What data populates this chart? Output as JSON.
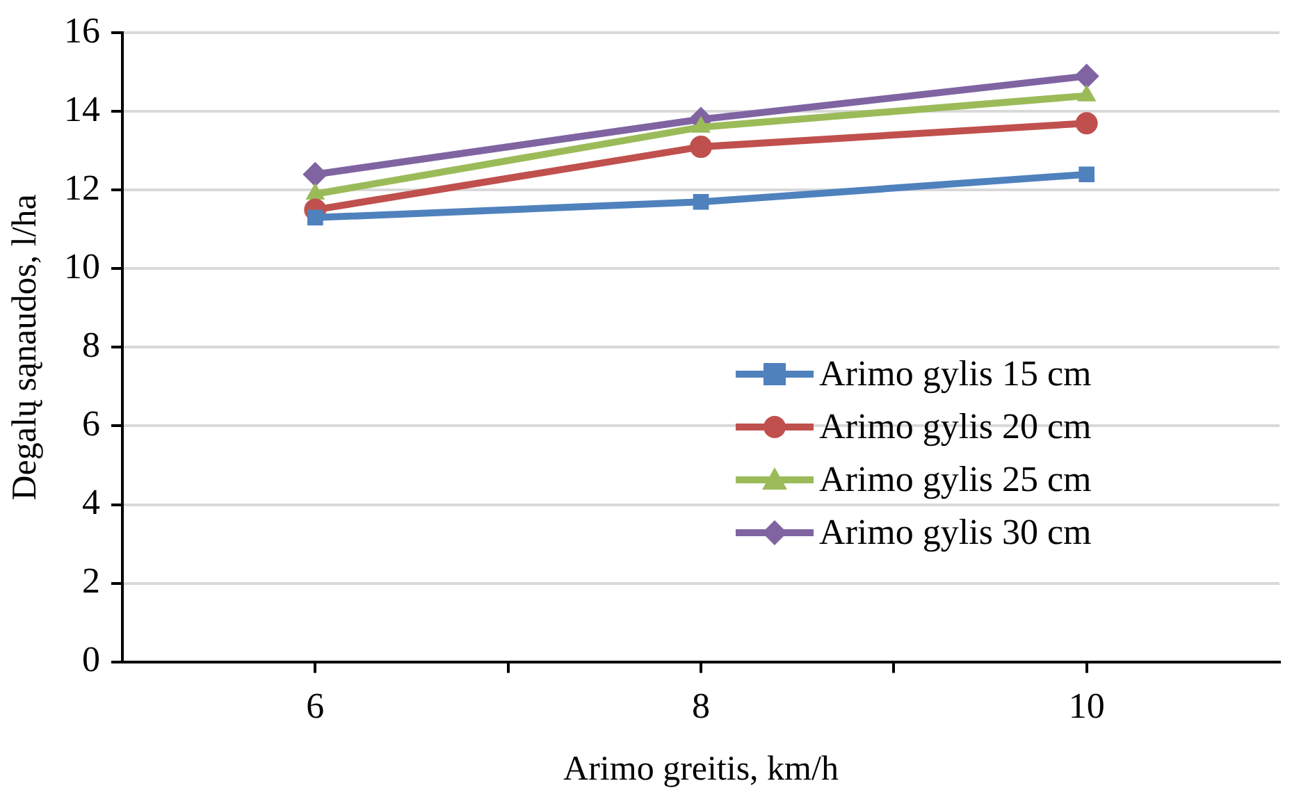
{
  "chart_data": {
    "type": "line",
    "xlabel": "Arimo greitis, km/h",
    "ylabel": "Degalų sąnaudos, l/ha",
    "x": [
      6,
      8,
      10
    ],
    "series": [
      {
        "name": "Arimo gylis 15 cm",
        "color": "#4f81bd",
        "marker": "square",
        "values": [
          11.3,
          11.7,
          12.4
        ]
      },
      {
        "name": "Arimo gylis 20 cm",
        "color": "#c0504d",
        "marker": "circle",
        "values": [
          11.5,
          13.1,
          13.7
        ]
      },
      {
        "name": "Arimo gylis 25 cm",
        "color": "#9bbb59",
        "marker": "triangle",
        "values": [
          11.9,
          13.6,
          14.4
        ]
      },
      {
        "name": "Arimo gylis 30 cm",
        "color": "#8064a2",
        "marker": "diamond",
        "values": [
          12.4,
          13.8,
          14.9
        ]
      }
    ],
    "xlim": [
      5,
      11
    ],
    "xticks": [
      6,
      {
        "value": 7,
        "label": null
      },
      8,
      {
        "value": 9,
        "label": null
      },
      10
    ],
    "ylim": [
      0,
      16
    ],
    "yticks": [
      0,
      2,
      4,
      6,
      8,
      10,
      12,
      14,
      16
    ],
    "grid": "y",
    "legend": "right",
    "line_style": "solid"
  }
}
